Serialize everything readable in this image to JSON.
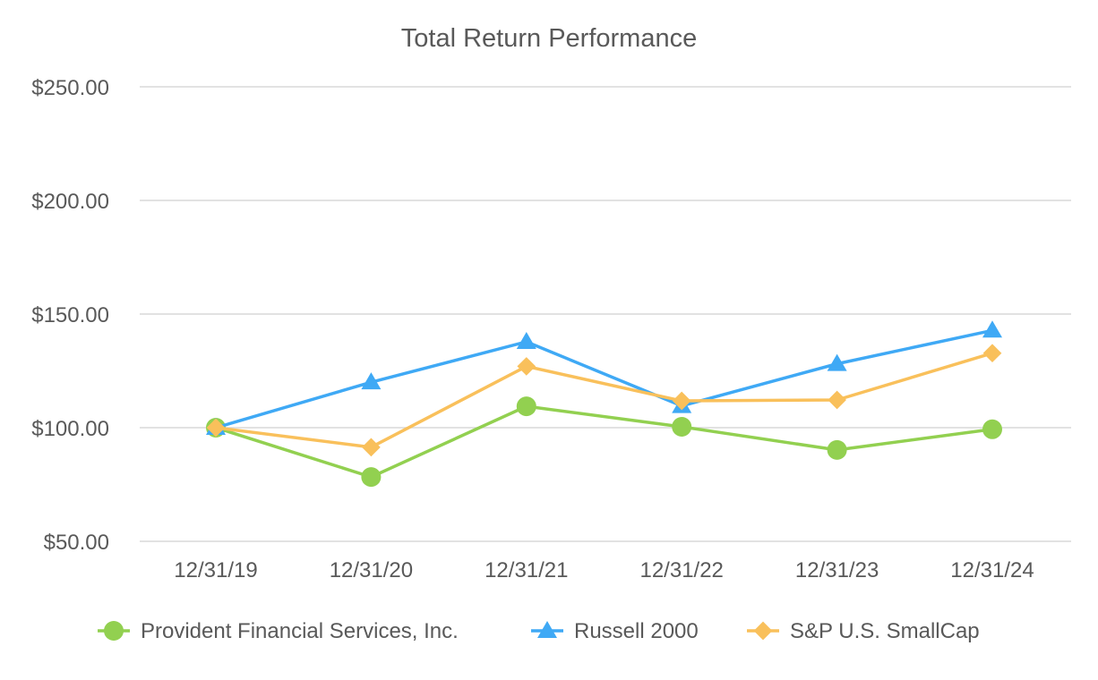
{
  "chart_data": {
    "type": "line",
    "title": "Total Return Performance",
    "xlabel": "",
    "ylabel": "",
    "categories": [
      "12/31/19",
      "12/31/20",
      "12/31/21",
      "12/31/22",
      "12/31/23",
      "12/31/24"
    ],
    "ylim": [
      50,
      250
    ],
    "yticks": [
      50,
      100,
      150,
      200,
      250
    ],
    "ytick_labels": [
      "$50.00",
      "$100.00",
      "$150.00",
      "$200.00",
      "$250.00"
    ],
    "grid": true,
    "legend_position": "bottom",
    "series": [
      {
        "name": "Provident Financial Services, Inc.",
        "marker": "circle",
        "color": "#92D050",
        "values": [
          100.0,
          78.3,
          109.4,
          100.4,
          90.2,
          99.3
        ]
      },
      {
        "name": "Russell 2000",
        "marker": "triangle",
        "color": "#3FA9F5",
        "values": [
          100.0,
          120.0,
          137.8,
          109.6,
          128.1,
          142.8
        ]
      },
      {
        "name": "S&P U.S. SmallCap",
        "marker": "diamond",
        "color": "#F9C05B",
        "values": [
          100.0,
          91.4,
          127.0,
          111.8,
          112.2,
          132.8
        ]
      }
    ]
  }
}
